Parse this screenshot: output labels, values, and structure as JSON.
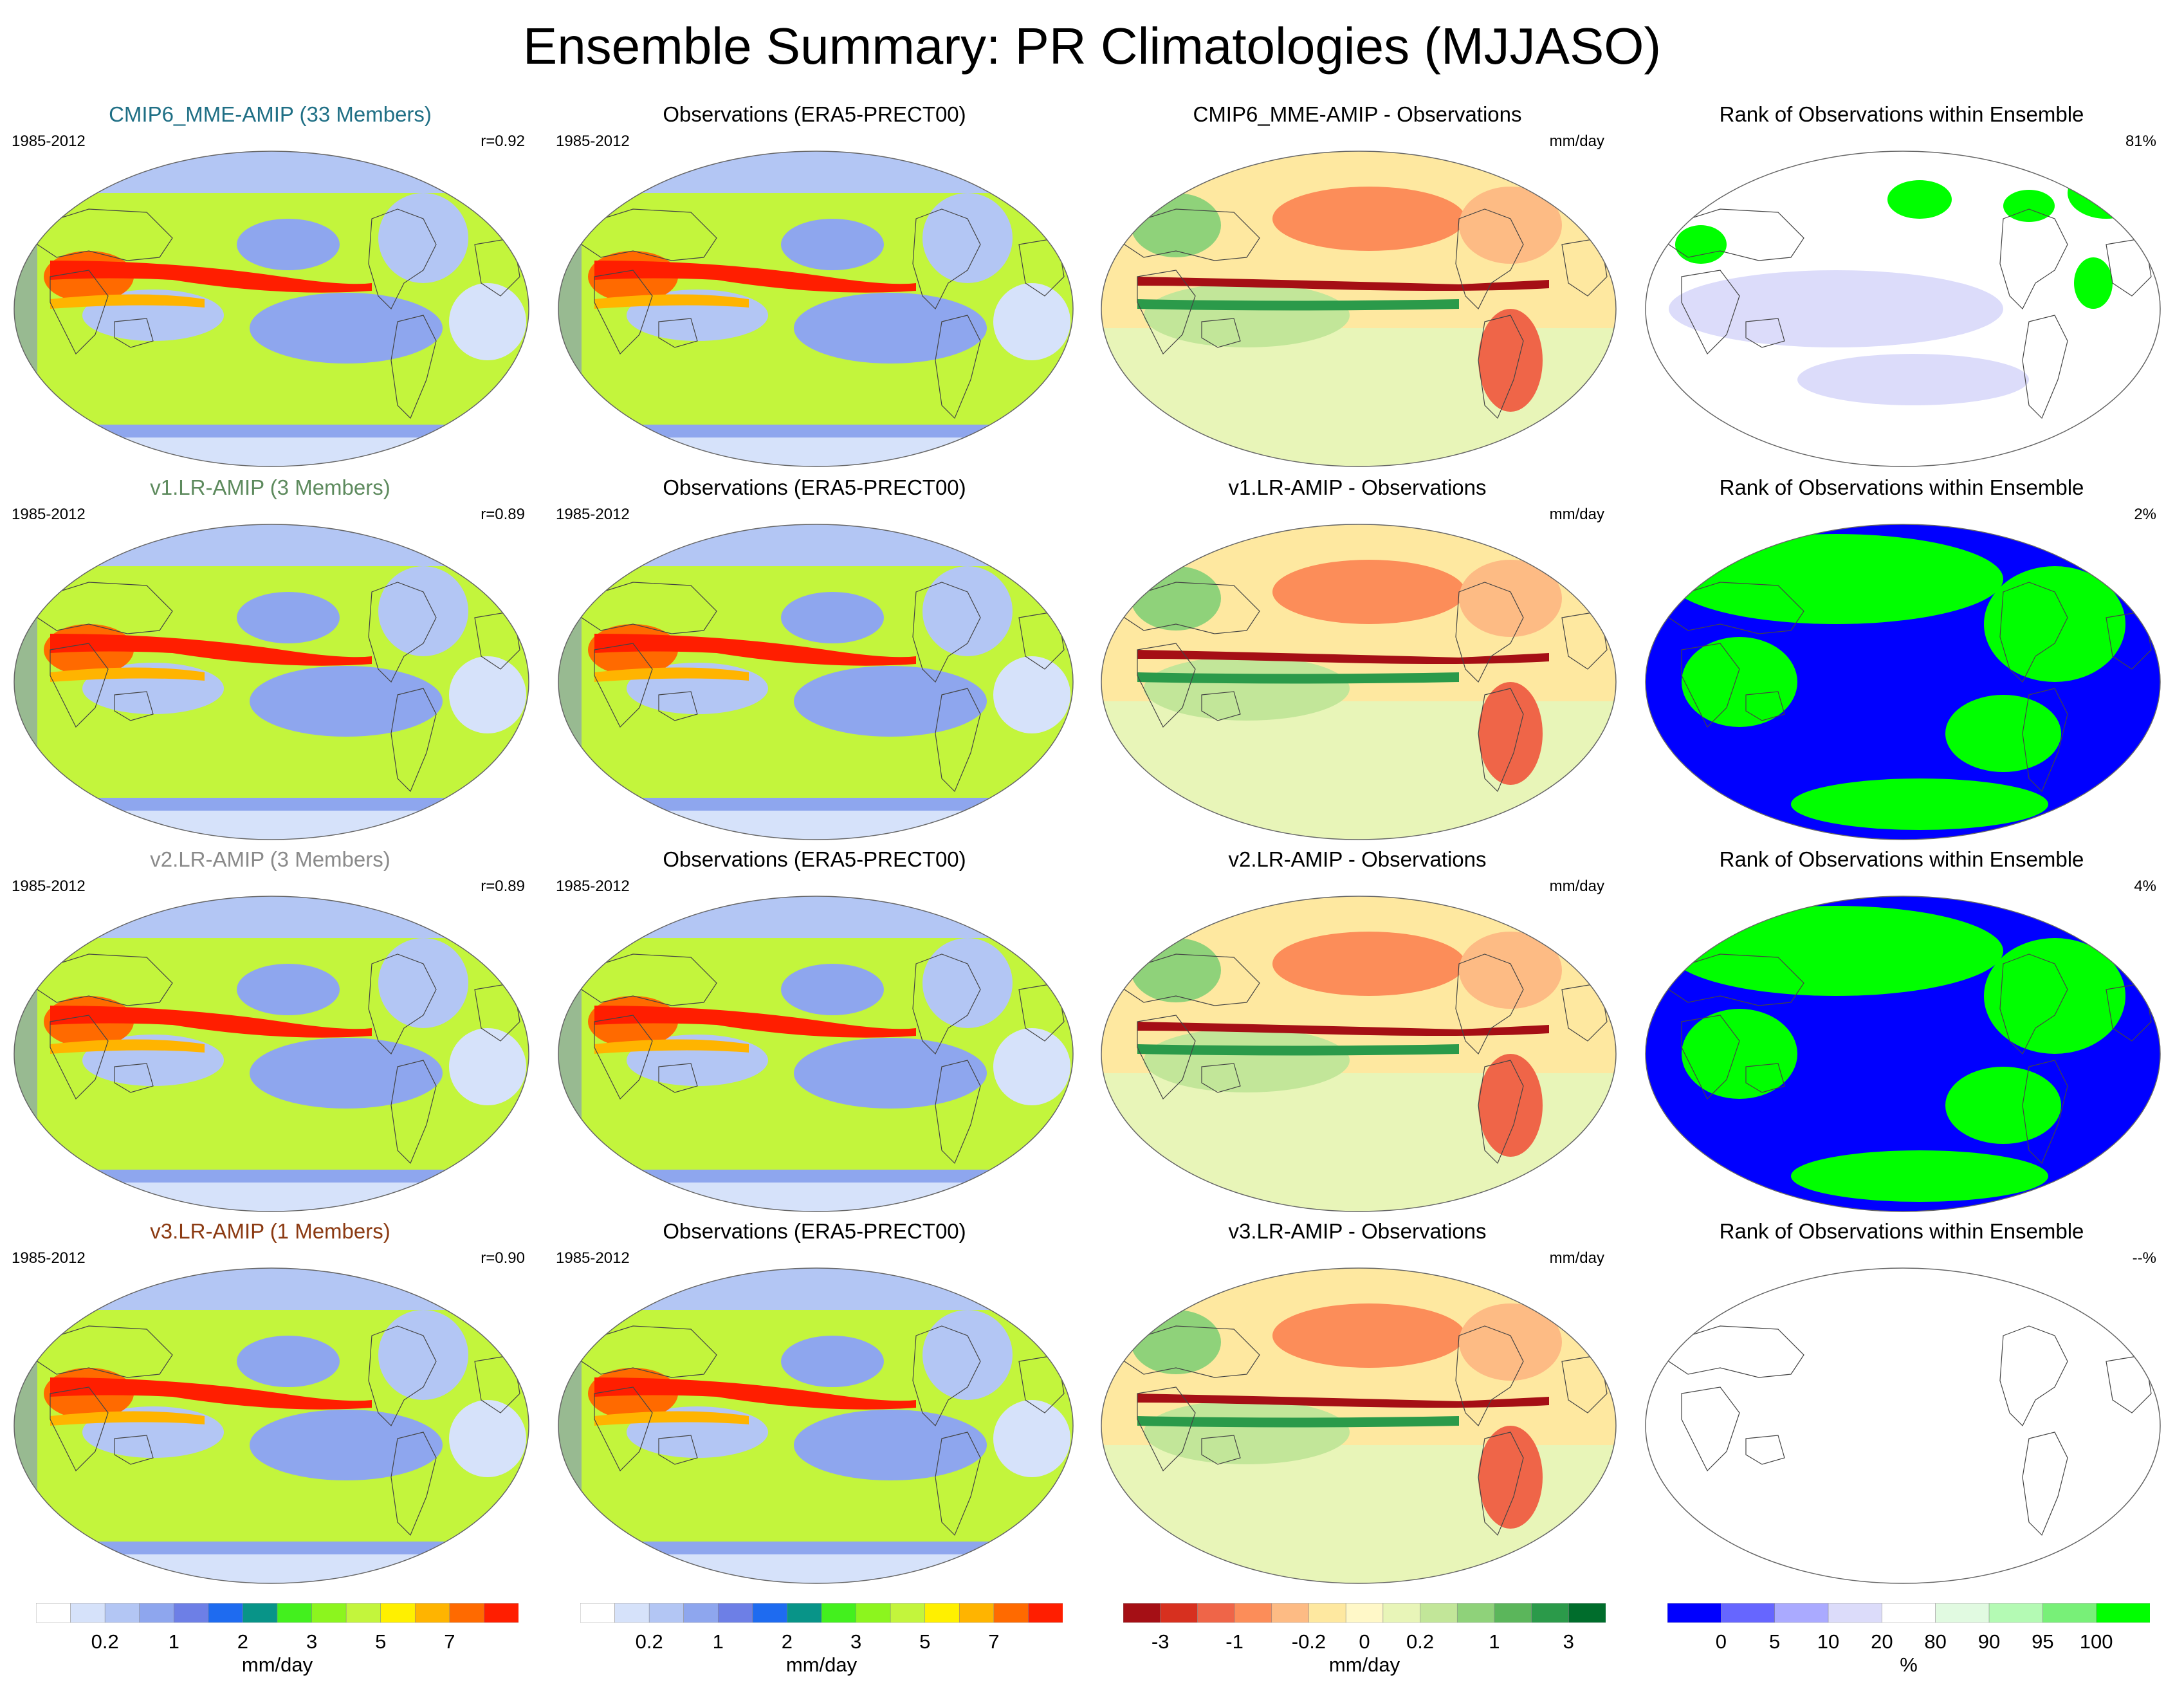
{
  "title": "Ensemble Summary: PR Climatologies (MJJASO)",
  "colors": {
    "t1": "#1f6f85",
    "t2": "#5d8a5d",
    "t3": "#8a8a8a",
    "t4": "#8b3a12"
  },
  "rows": [
    {
      "model_title": "CMIP6_MME-AMIP (33 Members)",
      "model_period": "1985-2012",
      "corr": "r=0.92",
      "obs_title": "Observations (ERA5-PRECT00)",
      "obs_period": "1985-2012",
      "diff_title": "CMIP6_MME-AMIP - Observations",
      "diff_unit": "mm/day",
      "rank_title": "Rank of Observations within Ensemble",
      "rank_pct": "81%",
      "rank_style": "mostly-white"
    },
    {
      "model_title": "v1.LR-AMIP (3 Members)",
      "model_period": "1985-2012",
      "corr": "r=0.89",
      "obs_title": "Observations (ERA5-PRECT00)",
      "obs_period": "1985-2012",
      "diff_title": "v1.LR-AMIP - Observations",
      "diff_unit": "mm/day",
      "rank_title": "Rank of Observations within Ensemble",
      "rank_pct": "2%",
      "rank_style": "blue-green"
    },
    {
      "model_title": "v2.LR-AMIP (3 Members)",
      "model_period": "1985-2012",
      "corr": "r=0.89",
      "obs_title": "Observations (ERA5-PRECT00)",
      "obs_period": "1985-2012",
      "diff_title": "v2.LR-AMIP - Observations",
      "diff_unit": "mm/day",
      "rank_title": "Rank of Observations within Ensemble",
      "rank_pct": "4%",
      "rank_style": "blue-green"
    },
    {
      "model_title": "v3.LR-AMIP (1 Members)",
      "model_period": "1985-2012",
      "corr": "r=0.90",
      "obs_title": "Observations (ERA5-PRECT00)",
      "obs_period": "1985-2012",
      "diff_title": "v3.LR-AMIP - Observations",
      "diff_unit": "mm/day",
      "rank_title": "Rank of Observations within Ensemble",
      "rank_pct": "--%",
      "rank_style": "empty"
    }
  ],
  "chart_data": {
    "type": "heatmap",
    "title": "Ensemble Summary: PR Climatologies (MJJASO)",
    "colorbars": [
      {
        "id": "precip_model",
        "unit": "mm/day",
        "colors": [
          "#ffffff",
          "#d6e2fa",
          "#b3c6f4",
          "#8ea6ee",
          "#6d7fe6",
          "#1e6bf0",
          "#089488",
          "#43f01e",
          "#8cf51e",
          "#c3f53c",
          "#fff000",
          "#ffb400",
          "#ff6a00",
          "#ff1e00"
        ],
        "tick_labels": [
          "0.2",
          "1",
          "2",
          "3",
          "5",
          "7"
        ],
        "tick_boundaries": [
          2,
          4,
          6,
          8,
          10,
          12
        ]
      },
      {
        "id": "precip_obs",
        "unit": "mm/day",
        "colors": [
          "#ffffff",
          "#d6e2fa",
          "#b3c6f4",
          "#8ea6ee",
          "#6d7fe6",
          "#1e6bf0",
          "#089488",
          "#43f01e",
          "#8cf51e",
          "#c3f53c",
          "#fff000",
          "#ffb400",
          "#ff6a00",
          "#ff1e00"
        ],
        "tick_labels": [
          "0.2",
          "1",
          "2",
          "3",
          "5",
          "7"
        ],
        "tick_boundaries": [
          2,
          4,
          6,
          8,
          10,
          12
        ]
      },
      {
        "id": "difference",
        "unit": "mm/day",
        "colors": [
          "#a50f15",
          "#d7301f",
          "#ef6548",
          "#fc8d59",
          "#fdbb84",
          "#fee8a0",
          "#fff8c8",
          "#e8f5b8",
          "#c2e699",
          "#8fd27a",
          "#5bb65b",
          "#2b9a4a",
          "#006d2c"
        ],
        "tick_labels": [
          "-3",
          "-1",
          "-0.2",
          "0",
          "0.2",
          "1",
          "3"
        ],
        "tick_boundaries": [
          1,
          3,
          5,
          6.5,
          8,
          10,
          12
        ]
      },
      {
        "id": "rank",
        "unit": "%",
        "colors": [
          "#0000ff",
          "#6666ff",
          "#aaaaff",
          "#dcdcfa",
          "#ffffff",
          "#e1fae1",
          "#b4fab4",
          "#78f078",
          "#00ff00"
        ],
        "tick_labels": [
          "0",
          "5",
          "10",
          "20",
          "80",
          "90",
          "95",
          "100"
        ],
        "tick_boundaries": [
          1,
          2,
          3,
          4,
          5,
          6,
          7,
          8
        ]
      }
    ],
    "panel_types": [
      "model climatology",
      "observed climatology",
      "model minus observations",
      "rank of observations"
    ]
  }
}
